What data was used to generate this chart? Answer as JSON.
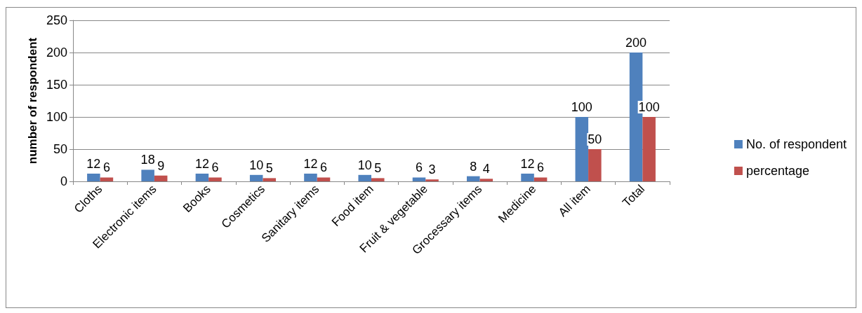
{
  "chart_data": {
    "type": "bar",
    "ylabel": "number of respondent",
    "categories": [
      "Cloths",
      "Electronic items",
      "Books",
      "Cosmetics",
      "Sanitary items",
      "Food item",
      "Fruit & vegetable",
      "Grocessary items",
      "Medicine",
      "All item",
      "Total"
    ],
    "series": [
      {
        "name": "No. of respondent",
        "color": "#4f81bd",
        "values": [
          12,
          18,
          12,
          10,
          12,
          10,
          6,
          8,
          12,
          100,
          200
        ]
      },
      {
        "name": "percentage",
        "color": "#c0504d",
        "values": [
          6,
          9,
          6,
          5,
          6,
          5,
          3,
          4,
          6,
          50,
          100
        ]
      }
    ],
    "ylim": [
      0,
      250
    ],
    "yticks": [
      0,
      50,
      100,
      150,
      200,
      250
    ],
    "grid": "y",
    "legend": "right",
    "data_labels": true
  }
}
